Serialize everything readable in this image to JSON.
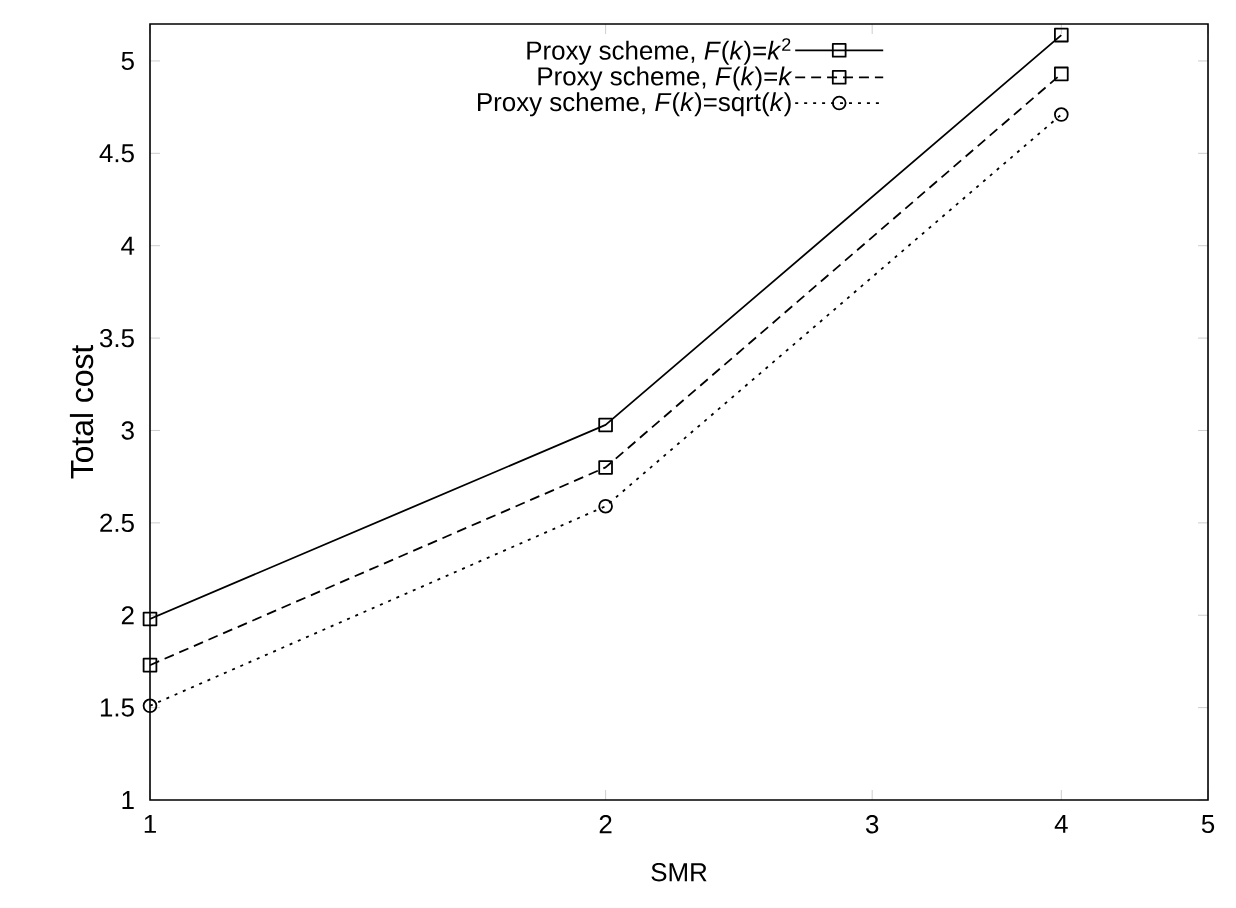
{
  "chart_data": {
    "type": "line",
    "xlabel": "SMR",
    "ylabel": "Total cost",
    "x": [
      1,
      2,
      4
    ],
    "log": "x",
    "xlim": [
      1,
      5
    ],
    "xticks": [
      1,
      2,
      3,
      4,
      5
    ],
    "ylim": [
      1,
      5.2
    ],
    "yticks": [
      1,
      1.5,
      2,
      2.5,
      3,
      3.5,
      4,
      4.5,
      5
    ],
    "legend": "top",
    "series": [
      {
        "name": "Proxy scheme, *F*(*k*)=*k*$^{2}$",
        "color": "#000000",
        "marker": "square",
        "line_style": "solid",
        "values": [
          1.98,
          3.03,
          5.14
        ]
      },
      {
        "name": "Proxy scheme, *F*(*k*)=*k*",
        "color": "#000000",
        "marker": "square",
        "line_style": "dashed",
        "values": [
          1.73,
          2.8,
          4.93
        ]
      },
      {
        "name": "Proxy scheme, *F*(*k*)=sqrt(*k*)",
        "color": "#000000",
        "marker": "circle",
        "line_style": "dotted",
        "values": [
          1.51,
          2.59,
          4.71
        ]
      }
    ]
  }
}
